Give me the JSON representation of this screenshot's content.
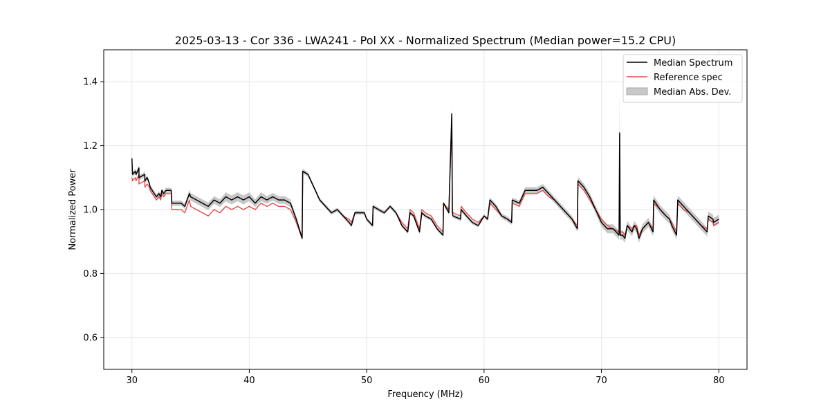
{
  "chart_data": {
    "type": "line",
    "title": "2025-03-13 - Cor 336 - LWA241 - Pol XX - Normalized Spectrum (Median power=15.2 CPU)",
    "xlabel": "Frequency (MHz)",
    "ylabel": "Normalized Power",
    "xlim": [
      27.6,
      82.4
    ],
    "ylim": [
      0.5,
      1.5
    ],
    "xticks": [
      30,
      40,
      50,
      60,
      70,
      80
    ],
    "yticks": [
      0.6,
      0.8,
      1.0,
      1.2,
      1.4
    ],
    "xtick_labels": [
      "30",
      "40",
      "50",
      "60",
      "70",
      "80"
    ],
    "ytick_labels": [
      "0.6",
      "0.8",
      "1.0",
      "1.2",
      "1.4"
    ],
    "grid": true,
    "legend_position": "top-right",
    "legend": [
      {
        "label": "Median Spectrum",
        "color": "#000000",
        "kind": "line"
      },
      {
        "label": "Reference spec",
        "color": "#e8494a",
        "kind": "line"
      },
      {
        "label": "Median Abs. Dev.",
        "color": "#c8c8c8",
        "kind": "patch"
      }
    ],
    "series": [
      {
        "name": "Median Spectrum",
        "color": "#000000",
        "x": [
          30.0,
          30.05,
          30.3,
          30.35,
          30.6,
          30.6,
          31.1,
          31.1,
          31.3,
          31.5,
          31.55,
          31.9,
          32.1,
          32.3,
          32.45,
          32.55,
          32.7,
          32.9,
          33.35,
          33.4,
          34.0,
          34.2,
          34.5,
          34.9,
          35.0,
          35.5,
          36.0,
          36.5,
          37.0,
          37.5,
          38.0,
          38.5,
          39.0,
          39.5,
          40.0,
          40.5,
          41.0,
          41.5,
          42.0,
          42.5,
          43.0,
          43.5,
          44.0,
          44.5,
          44.55,
          45.0,
          45.5,
          46.0,
          46.5,
          47.0,
          47.5,
          48.0,
          48.5,
          48.7,
          49.0,
          49.5,
          49.8,
          50.0,
          50.5,
          50.55,
          51.0,
          51.5,
          52.0,
          52.5,
          53.0,
          53.5,
          53.7,
          54.0,
          54.5,
          54.7,
          55.0,
          55.5,
          56.0,
          56.5,
          56.55,
          57.0,
          57.25,
          57.3,
          57.35,
          58.0,
          58.05,
          58.5,
          59.0,
          59.5,
          60.0,
          60.3,
          60.5,
          61.0,
          61.5,
          62.0,
          62.35,
          62.4,
          63.0,
          63.5,
          64.0,
          64.5,
          65.0,
          65.5,
          66.0,
          66.5,
          67.0,
          67.5,
          67.95,
          68.0,
          68.5,
          69.0,
          69.5,
          70.0,
          70.5,
          71.0,
          71.5,
          71.55,
          71.6,
          71.8,
          72.0,
          72.2,
          72.6,
          72.8,
          73.0,
          73.2,
          73.5,
          74.0,
          74.4,
          74.45,
          75.0,
          75.5,
          75.8,
          76.0,
          76.4,
          76.5,
          77.0,
          77.5,
          78.0,
          78.5,
          79.0,
          79.1,
          79.5,
          79.55,
          80.0
        ],
        "y": [
          1.16,
          1.11,
          1.12,
          1.11,
          1.13,
          1.1,
          1.11,
          1.09,
          1.1,
          1.08,
          1.07,
          1.05,
          1.04,
          1.05,
          1.04,
          1.06,
          1.05,
          1.06,
          1.06,
          1.02,
          1.02,
          1.02,
          1.01,
          1.05,
          1.04,
          1.03,
          1.02,
          1.01,
          1.03,
          1.02,
          1.04,
          1.03,
          1.04,
          1.03,
          1.04,
          1.02,
          1.04,
          1.03,
          1.04,
          1.03,
          1.03,
          1.02,
          0.97,
          0.91,
          1.12,
          1.11,
          1.07,
          1.03,
          1.01,
          0.99,
          1.0,
          0.98,
          0.96,
          0.95,
          0.99,
          0.99,
          0.99,
          0.97,
          0.95,
          1.01,
          1.0,
          0.99,
          1.01,
          0.99,
          0.95,
          0.93,
          0.99,
          0.98,
          0.93,
          0.99,
          0.98,
          0.97,
          0.94,
          0.92,
          1.02,
          0.99,
          1.3,
          0.99,
          0.98,
          0.97,
          1.0,
          0.98,
          0.96,
          0.95,
          0.98,
          0.97,
          1.03,
          1.01,
          0.98,
          0.97,
          0.96,
          1.03,
          1.02,
          1.06,
          1.06,
          1.06,
          1.07,
          1.05,
          1.03,
          1.01,
          0.99,
          0.97,
          0.94,
          1.09,
          1.07,
          1.04,
          1.0,
          0.96,
          0.94,
          0.94,
          0.92,
          1.24,
          0.92,
          0.92,
          0.91,
          0.95,
          0.93,
          0.95,
          0.94,
          0.91,
          0.94,
          0.96,
          0.93,
          1.03,
          1.0,
          0.98,
          0.97,
          0.95,
          0.92,
          1.03,
          1.01,
          0.99,
          0.97,
          0.95,
          0.93,
          0.98,
          0.97,
          0.96,
          0.97
        ]
      },
      {
        "name": "Reference spec",
        "color": "#e8494a",
        "x": [
          30.0,
          30.05,
          30.3,
          30.35,
          30.6,
          30.6,
          31.1,
          31.1,
          31.3,
          31.5,
          31.55,
          31.9,
          32.1,
          32.3,
          32.45,
          32.55,
          32.7,
          32.9,
          33.35,
          33.4,
          34.0,
          34.2,
          34.5,
          34.9,
          35.0,
          35.5,
          36.0,
          36.5,
          37.0,
          37.5,
          38.0,
          38.5,
          39.0,
          39.5,
          40.0,
          40.5,
          41.0,
          41.5,
          42.0,
          42.5,
          43.0,
          43.5,
          44.0,
          44.5,
          44.55,
          45.0,
          45.5,
          46.0,
          46.5,
          47.0,
          47.5,
          48.0,
          48.5,
          48.7,
          49.0,
          49.5,
          49.8,
          50.0,
          50.5,
          50.55,
          51.0,
          51.5,
          52.0,
          52.5,
          53.0,
          53.5,
          53.7,
          54.0,
          54.5,
          54.7,
          55.0,
          55.5,
          56.0,
          56.5,
          56.55,
          57.0,
          57.25,
          57.3,
          57.35,
          58.0,
          58.05,
          58.5,
          59.0,
          59.5,
          60.0,
          60.3,
          60.5,
          61.0,
          61.5,
          62.0,
          62.35,
          62.4,
          63.0,
          63.5,
          64.0,
          64.5,
          65.0,
          65.5,
          66.0,
          66.5,
          67.0,
          67.5,
          67.95,
          68.0,
          68.5,
          69.0,
          69.5,
          70.0,
          70.5,
          71.0,
          71.5,
          71.55,
          71.6,
          71.8,
          72.0,
          72.2,
          72.6,
          72.8,
          73.0,
          73.2,
          73.5,
          74.0,
          74.4,
          74.45,
          75.0,
          75.5,
          75.8,
          76.0,
          76.4,
          76.5,
          77.0,
          77.5,
          78.0,
          78.5,
          79.0,
          79.1,
          79.5,
          79.55,
          80.0
        ],
        "y": [
          1.1,
          1.09,
          1.1,
          1.09,
          1.11,
          1.08,
          1.09,
          1.07,
          1.08,
          1.07,
          1.06,
          1.04,
          1.03,
          1.04,
          1.03,
          1.05,
          1.04,
          1.05,
          1.05,
          1.0,
          1.0,
          1.0,
          0.99,
          1.03,
          1.01,
          1.0,
          0.99,
          0.98,
          1.0,
          0.99,
          1.01,
          1.0,
          1.01,
          1.0,
          1.01,
          1.0,
          1.02,
          1.01,
          1.02,
          1.01,
          1.01,
          1.0,
          0.96,
          0.91,
          1.12,
          1.11,
          1.07,
          1.03,
          1.01,
          0.99,
          1.0,
          0.98,
          0.97,
          0.96,
          0.99,
          0.99,
          0.99,
          0.97,
          0.95,
          1.01,
          1.0,
          0.99,
          1.01,
          0.99,
          0.96,
          0.94,
          1.0,
          0.99,
          0.94,
          1.0,
          0.99,
          0.98,
          0.95,
          0.93,
          1.02,
          1.0,
          1.29,
          1.0,
          0.99,
          0.98,
          1.01,
          0.99,
          0.97,
          0.96,
          0.98,
          0.97,
          1.02,
          1.0,
          0.98,
          0.97,
          0.96,
          1.02,
          1.01,
          1.05,
          1.05,
          1.05,
          1.06,
          1.04,
          1.03,
          1.01,
          0.99,
          0.97,
          0.95,
          1.08,
          1.06,
          1.03,
          1.0,
          0.97,
          0.95,
          0.94,
          0.93,
          0.93,
          0.93,
          0.93,
          0.92,
          0.95,
          0.94,
          0.95,
          0.95,
          0.92,
          0.94,
          0.96,
          0.94,
          1.02,
          1.0,
          0.98,
          0.97,
          0.96,
          0.93,
          1.02,
          1.0,
          0.99,
          0.97,
          0.95,
          0.94,
          0.97,
          0.96,
          0.95,
          0.96
        ]
      }
    ],
    "mad_band": {
      "name": "Median Abs. Dev.",
      "color": "#c8c8c8",
      "width": [
        0.01,
        0.008,
        0.008,
        0.008,
        0.008,
        0.008,
        0.008,
        0.008,
        0.008,
        0.008,
        0.008,
        0.008,
        0.008,
        0.008,
        0.008,
        0.008,
        0.008,
        0.008,
        0.008,
        0.008,
        0.008,
        0.008,
        0.008,
        0.012,
        0.012,
        0.012,
        0.012,
        0.012,
        0.012,
        0.012,
        0.014,
        0.014,
        0.014,
        0.014,
        0.014,
        0.012,
        0.014,
        0.012,
        0.012,
        0.012,
        0.012,
        0.012,
        0.01,
        0.008,
        0.008,
        0.006,
        0.006,
        0.006,
        0.006,
        0.006,
        0.006,
        0.006,
        0.006,
        0.006,
        0.006,
        0.006,
        0.006,
        0.006,
        0.006,
        0.006,
        0.006,
        0.006,
        0.006,
        0.006,
        0.006,
        0.006,
        0.006,
        0.006,
        0.006,
        0.006,
        0.006,
        0.006,
        0.006,
        0.006,
        0.006,
        0.006,
        0.022,
        0.006,
        0.006,
        0.006,
        0.006,
        0.006,
        0.006,
        0.006,
        0.006,
        0.006,
        0.008,
        0.008,
        0.008,
        0.008,
        0.008,
        0.008,
        0.008,
        0.01,
        0.01,
        0.01,
        0.01,
        0.01,
        0.01,
        0.01,
        0.01,
        0.01,
        0.01,
        0.012,
        0.012,
        0.012,
        0.012,
        0.014,
        0.014,
        0.014,
        0.014,
        0.13,
        0.014,
        0.014,
        0.014,
        0.014,
        0.014,
        0.014,
        0.014,
        0.014,
        0.014,
        0.014,
        0.014,
        0.014,
        0.014,
        0.014,
        0.014,
        0.014,
        0.014,
        0.014,
        0.014,
        0.014,
        0.014,
        0.014,
        0.014,
        0.014,
        0.014,
        0.014,
        0.014
      ]
    }
  }
}
